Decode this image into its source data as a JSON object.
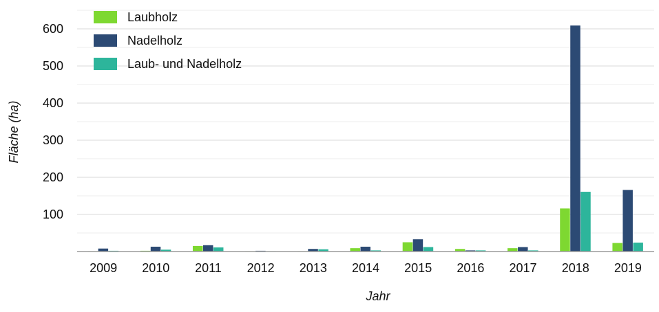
{
  "chart_data": {
    "type": "bar",
    "xlabel": "Jahr",
    "ylabel": "Fläche (ha)",
    "categories": [
      "2009",
      "2010",
      "2011",
      "2012",
      "2013",
      "2014",
      "2015",
      "2016",
      "2017",
      "2018",
      "2019"
    ],
    "series": [
      {
        "name": "Laubholz",
        "color": "#7ed831",
        "values": [
          1,
          2,
          15,
          1,
          1,
          9,
          25,
          7,
          9,
          116,
          23
        ]
      },
      {
        "name": "Nadelholz",
        "color": "#2c4a74",
        "values": [
          8,
          13,
          17,
          2,
          7,
          13,
          33,
          3,
          12,
          609,
          166
        ]
      },
      {
        "name": "Laub- und Nadelholz",
        "color": "#2db59b",
        "values": [
          2,
          5,
          11,
          1,
          6,
          3,
          12,
          3,
          3,
          161,
          24
        ]
      }
    ],
    "yticks": [
      100,
      200,
      300,
      400,
      500,
      600
    ],
    "ylim": [
      0,
      650
    ],
    "grid": true,
    "legend": "top-left"
  }
}
